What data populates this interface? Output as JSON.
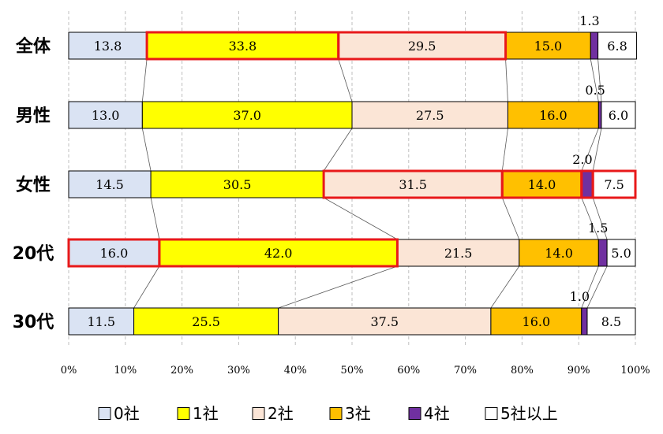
{
  "chart_data": {
    "type": "bar",
    "orientation": "horizontal",
    "stacked": "percent",
    "categories": [
      "全体",
      "男性",
      "女性",
      "20代",
      "30代"
    ],
    "series": [
      {
        "name": "0社",
        "color": "#dae3f3",
        "values": [
          13.8,
          13.0,
          14.5,
          16.0,
          11.5
        ]
      },
      {
        "name": "1社",
        "color": "#ffff00",
        "values": [
          33.8,
          37.0,
          30.5,
          42.0,
          25.5
        ]
      },
      {
        "name": "2社",
        "color": "#fbe5d6",
        "values": [
          29.5,
          27.5,
          31.5,
          21.5,
          37.5
        ]
      },
      {
        "name": "3社",
        "color": "#ffc000",
        "values": [
          15.0,
          16.0,
          14.0,
          14.0,
          16.0
        ]
      },
      {
        "name": "4社",
        "color": "#7030a0",
        "values": [
          1.3,
          0.5,
          2.0,
          1.5,
          1.0
        ]
      },
      {
        "name": "5社以上",
        "color": "#ffffff",
        "values": [
          6.8,
          6.0,
          7.5,
          5.0,
          8.5
        ]
      }
    ],
    "data_labels": [
      [
        "13.8",
        "33.8",
        "29.5",
        "15.0",
        "1.3",
        "6.8"
      ],
      [
        "13.0",
        "37.0",
        "27.5",
        "16.0",
        "0.5",
        "6.0"
      ],
      [
        "14.5",
        "30.5",
        "31.5",
        "14.0",
        "2.0",
        "7.5"
      ],
      [
        "16.0",
        "42.0",
        "21.5",
        "14.0",
        "1.5",
        "5.0"
      ],
      [
        "11.5",
        "25.5",
        "37.5",
        "16.0",
        "1.0",
        "8.5"
      ]
    ],
    "highlighted": [
      {
        "category_index": 0,
        "series_indices": [
          1,
          2
        ]
      },
      {
        "category_index": 2,
        "series_indices": [
          2,
          3,
          4,
          5
        ]
      },
      {
        "category_index": 3,
        "series_indices": [
          0,
          1
        ]
      }
    ],
    "xlim": [
      0,
      100
    ],
    "x_ticks": [
      "0%",
      "10%",
      "20%",
      "30%",
      "40%",
      "50%",
      "60%",
      "70%",
      "80%",
      "90%",
      "100%"
    ],
    "grid": "vertical-dashed",
    "legend": "bottom",
    "series_lines": true
  }
}
